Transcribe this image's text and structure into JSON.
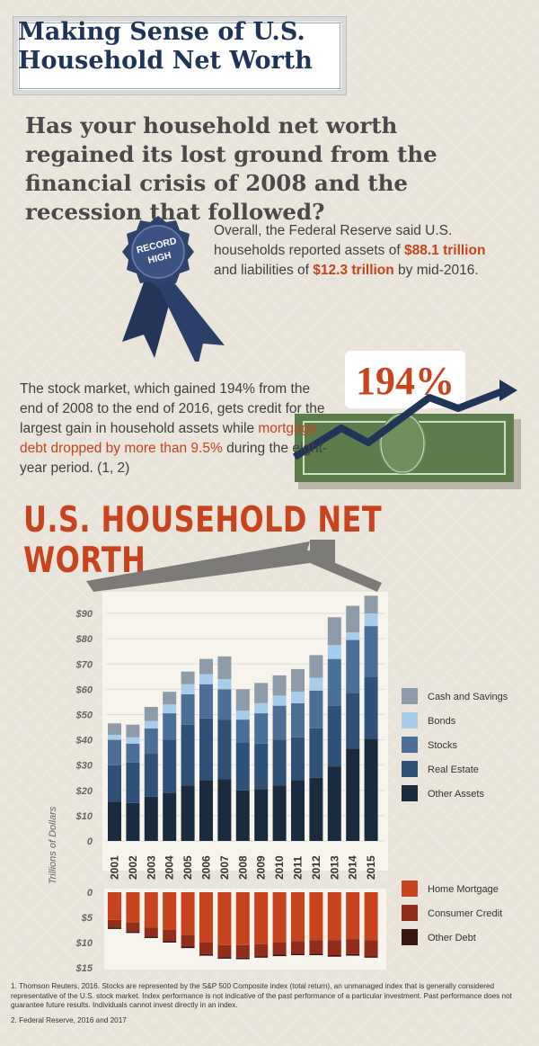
{
  "header": {
    "title_line1": "Making Sense of U.S.",
    "title_line2": "Household Net Worth"
  },
  "question": "Has your household net worth regained its lost ground from the financial crisis of 2008 and the recession that followed?",
  "badge": {
    "line1": "RECORD",
    "line2": "HIGH"
  },
  "overall": {
    "before": "Overall, the Federal Reserve said U.S. households reported assets of ",
    "assets": "$88.1 trillion",
    "middle": " and liabilities of ",
    "liabilities": "$12.3 trillion",
    "after": " by mid-2016."
  },
  "stock": {
    "pct": "194%",
    "before": "The stock market, which gained 194% from the end of 2008 to the end of 2016, gets credit for the largest gain in household assets while ",
    "highlight": "mortgage debt dropped by more than 9.5%",
    "after": " during the eight-year period. (1, 2)"
  },
  "section_title": "U.S. HOUSEHOLD NET WORTH",
  "colors": {
    "accent": "#c8441e",
    "navy": "#1f3457",
    "cash": "#8e9ba8",
    "bonds": "#a7cdea",
    "stocks": "#4c6f97",
    "real_estate": "#2f5077",
    "other_assets": "#1a2b40",
    "mortgage": "#c8441e",
    "consumer_credit": "#922d1c",
    "other_debt": "#3b1510",
    "money_green": "#5c7c4c"
  },
  "chart_data": {
    "type": "bar",
    "stacked": true,
    "categories": [
      "2001",
      "2002",
      "2003",
      "2004",
      "2005",
      "2006",
      "2007",
      "2008",
      "2009",
      "2010",
      "2011",
      "2012",
      "2013",
      "2014",
      "2015"
    ],
    "ylabel": "Trillions of Dollars",
    "assets": {
      "ylim": [
        0,
        95
      ],
      "ticks": [
        "$90",
        "$80",
        "$70",
        "$60",
        "$50",
        "$40",
        "$30",
        "$20",
        "$10",
        "0"
      ],
      "tick_values": [
        90,
        80,
        70,
        60,
        50,
        40,
        30,
        20,
        10,
        0
      ],
      "series": [
        {
          "name": "Other Assets",
          "values": [
            15.5,
            15,
            17.5,
            19,
            22,
            24,
            24.5,
            20,
            20.5,
            22,
            24,
            25,
            29.5,
            36.5,
            40.5
          ]
        },
        {
          "name": "Real Estate",
          "values": [
            14.5,
            16,
            17,
            21,
            24,
            24.5,
            23.5,
            19,
            18,
            18,
            17,
            19.5,
            24,
            22,
            24.5
          ]
        },
        {
          "name": "Stocks",
          "values": [
            10,
            7.5,
            10,
            10.5,
            12,
            13.5,
            12,
            9,
            12,
            13.5,
            13.5,
            15,
            18.5,
            21,
            20
          ]
        },
        {
          "name": "Bonds",
          "values": [
            2,
            2.5,
            3,
            3.5,
            4,
            4,
            4,
            3.5,
            4,
            4,
            4.5,
            5,
            5.5,
            3,
            5
          ]
        },
        {
          "name": "Cash and Savings",
          "values": [
            4.5,
            5,
            5.5,
            5,
            5,
            6,
            9,
            8.5,
            8,
            8,
            9,
            9,
            11,
            10.5,
            7
          ]
        }
      ]
    },
    "liabilities": {
      "ylim": [
        0,
        15
      ],
      "ticks": [
        "0",
        "$5",
        "$10",
        "$15"
      ],
      "tick_values": [
        0,
        5,
        10,
        15
      ],
      "series": [
        {
          "name": "Home Mortgage",
          "values": [
            5.5,
            6,
            7,
            7.5,
            8.5,
            10,
            10.5,
            10.5,
            10.3,
            10,
            9.7,
            9.5,
            9.5,
            9.3,
            9.5
          ]
        },
        {
          "name": "Consumer Credit",
          "values": [
            1.5,
            1.8,
            1.8,
            2.2,
            2.3,
            2.3,
            2.4,
            2.5,
            2.4,
            2.4,
            2.5,
            2.7,
            3,
            3,
            3.2
          ]
        },
        {
          "name": "Other Debt",
          "values": [
            0.3,
            0.3,
            0.3,
            0.3,
            0.3,
            0.3,
            0.3,
            0.3,
            0.3,
            0.3,
            0.3,
            0.3,
            0.3,
            0.3,
            0.3
          ]
        }
      ]
    },
    "asset_legend": [
      "Cash and Savings",
      "Bonds",
      "Stocks",
      "Real Estate",
      "Other Assets"
    ],
    "liability_legend": [
      "Home Mortgage",
      "Consumer Credit",
      "Other Debt"
    ]
  },
  "footnotes": [
    "1.  Thomson Reuters, 2016. Stocks are represented by the S&P 500 Composite index (total return), an unmanaged index that is generally considered representative of the U.S. stock market. Index performance is not indicative of the past performance of a particular investment.  Past performance does not guarantee future results. Individuals cannot invest directly in an index.",
    "2.  Federal Reserve, 2016 and 2017"
  ]
}
